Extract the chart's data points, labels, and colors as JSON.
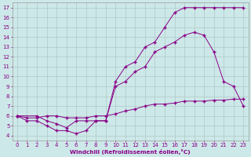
{
  "xlabel": "Windchill (Refroidissement éolien,°C)",
  "bg_color": "#cde8e8",
  "line_color": "#880088",
  "grid_color": "#b0c8c8",
  "x_ticks": [
    0,
    1,
    2,
    3,
    4,
    5,
    6,
    7,
    8,
    9,
    10,
    11,
    12,
    13,
    14,
    15,
    16,
    17,
    18,
    19,
    20,
    21,
    22,
    23
  ],
  "y_ticks": [
    4,
    5,
    6,
    7,
    8,
    9,
    10,
    11,
    12,
    13,
    14,
    15,
    16,
    17
  ],
  "xlim": [
    -0.5,
    23.5
  ],
  "ylim": [
    3.5,
    17.5
  ],
  "line1_x": [
    0,
    1,
    2,
    3,
    4,
    5,
    6,
    7,
    8,
    9,
    10,
    11,
    12,
    13,
    14,
    15,
    16,
    17,
    18,
    19,
    20,
    21,
    22,
    23
  ],
  "line1_y": [
    6.0,
    5.8,
    5.8,
    6.0,
    6.0,
    5.8,
    5.8,
    5.8,
    6.0,
    6.0,
    6.2,
    6.5,
    6.7,
    7.0,
    7.2,
    7.2,
    7.3,
    7.5,
    7.5,
    7.5,
    7.6,
    7.6,
    7.7,
    7.7
  ],
  "line2_x": [
    0,
    2,
    3,
    4,
    5,
    6,
    7,
    8,
    9,
    10,
    11,
    12,
    13,
    14,
    15,
    16,
    17,
    18,
    19,
    20,
    21,
    22,
    23
  ],
  "line2_y": [
    6.0,
    6.0,
    5.5,
    5.2,
    4.8,
    5.5,
    5.5,
    5.5,
    5.5,
    9.5,
    11.0,
    11.5,
    13.0,
    13.5,
    15.0,
    16.5,
    17.0,
    17.0,
    17.0,
    17.0,
    17.0,
    17.0,
    17.0
  ],
  "line3_x": [
    0,
    1,
    2,
    3,
    4,
    5,
    6,
    7,
    8,
    9,
    10,
    11,
    12,
    13,
    14,
    15,
    16,
    17,
    18,
    19,
    20,
    21,
    22,
    23
  ],
  "line3_y": [
    6.0,
    5.5,
    5.5,
    5.0,
    4.5,
    4.5,
    4.2,
    4.5,
    5.5,
    5.5,
    9.0,
    9.5,
    10.5,
    11.0,
    12.5,
    13.0,
    13.5,
    14.2,
    14.5,
    14.2,
    12.5,
    9.5,
    9.0,
    7.0
  ]
}
